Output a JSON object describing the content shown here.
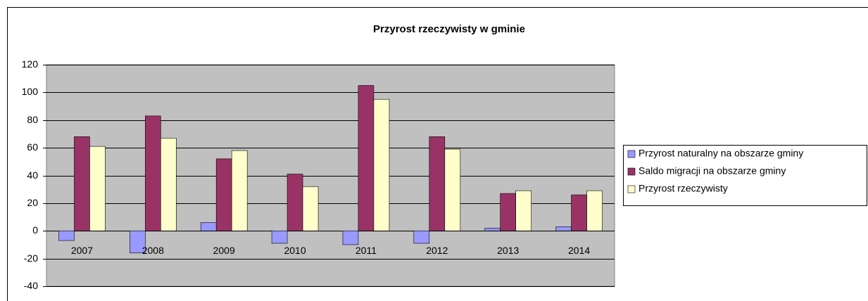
{
  "chart_data": {
    "type": "bar",
    "title": "Przyrost rzeczywisty w gminie",
    "categories": [
      "2007",
      "2008",
      "2009",
      "2010",
      "2011",
      "2012",
      "2013",
      "2014"
    ],
    "series": [
      {
        "name": "Przyrost naturalny na obszarze gminy",
        "color": "#9999ff",
        "values": [
          -7,
          -16,
          6,
          -9,
          -10,
          -9,
          2,
          3
        ]
      },
      {
        "name": "Saldo migracji na obszarze gminy",
        "color": "#993366",
        "values": [
          68,
          83,
          52,
          41,
          105,
          68,
          27,
          26
        ]
      },
      {
        "name": "Przyrost rzeczywisty",
        "color": "#ffffcc",
        "values": [
          61,
          67,
          58,
          32,
          95,
          59,
          29,
          29
        ]
      }
    ],
    "ylim": [
      -40,
      120
    ],
    "yticks": [
      -40,
      -20,
      0,
      20,
      40,
      60,
      80,
      100,
      120
    ],
    "grid": true,
    "legend": "right"
  }
}
